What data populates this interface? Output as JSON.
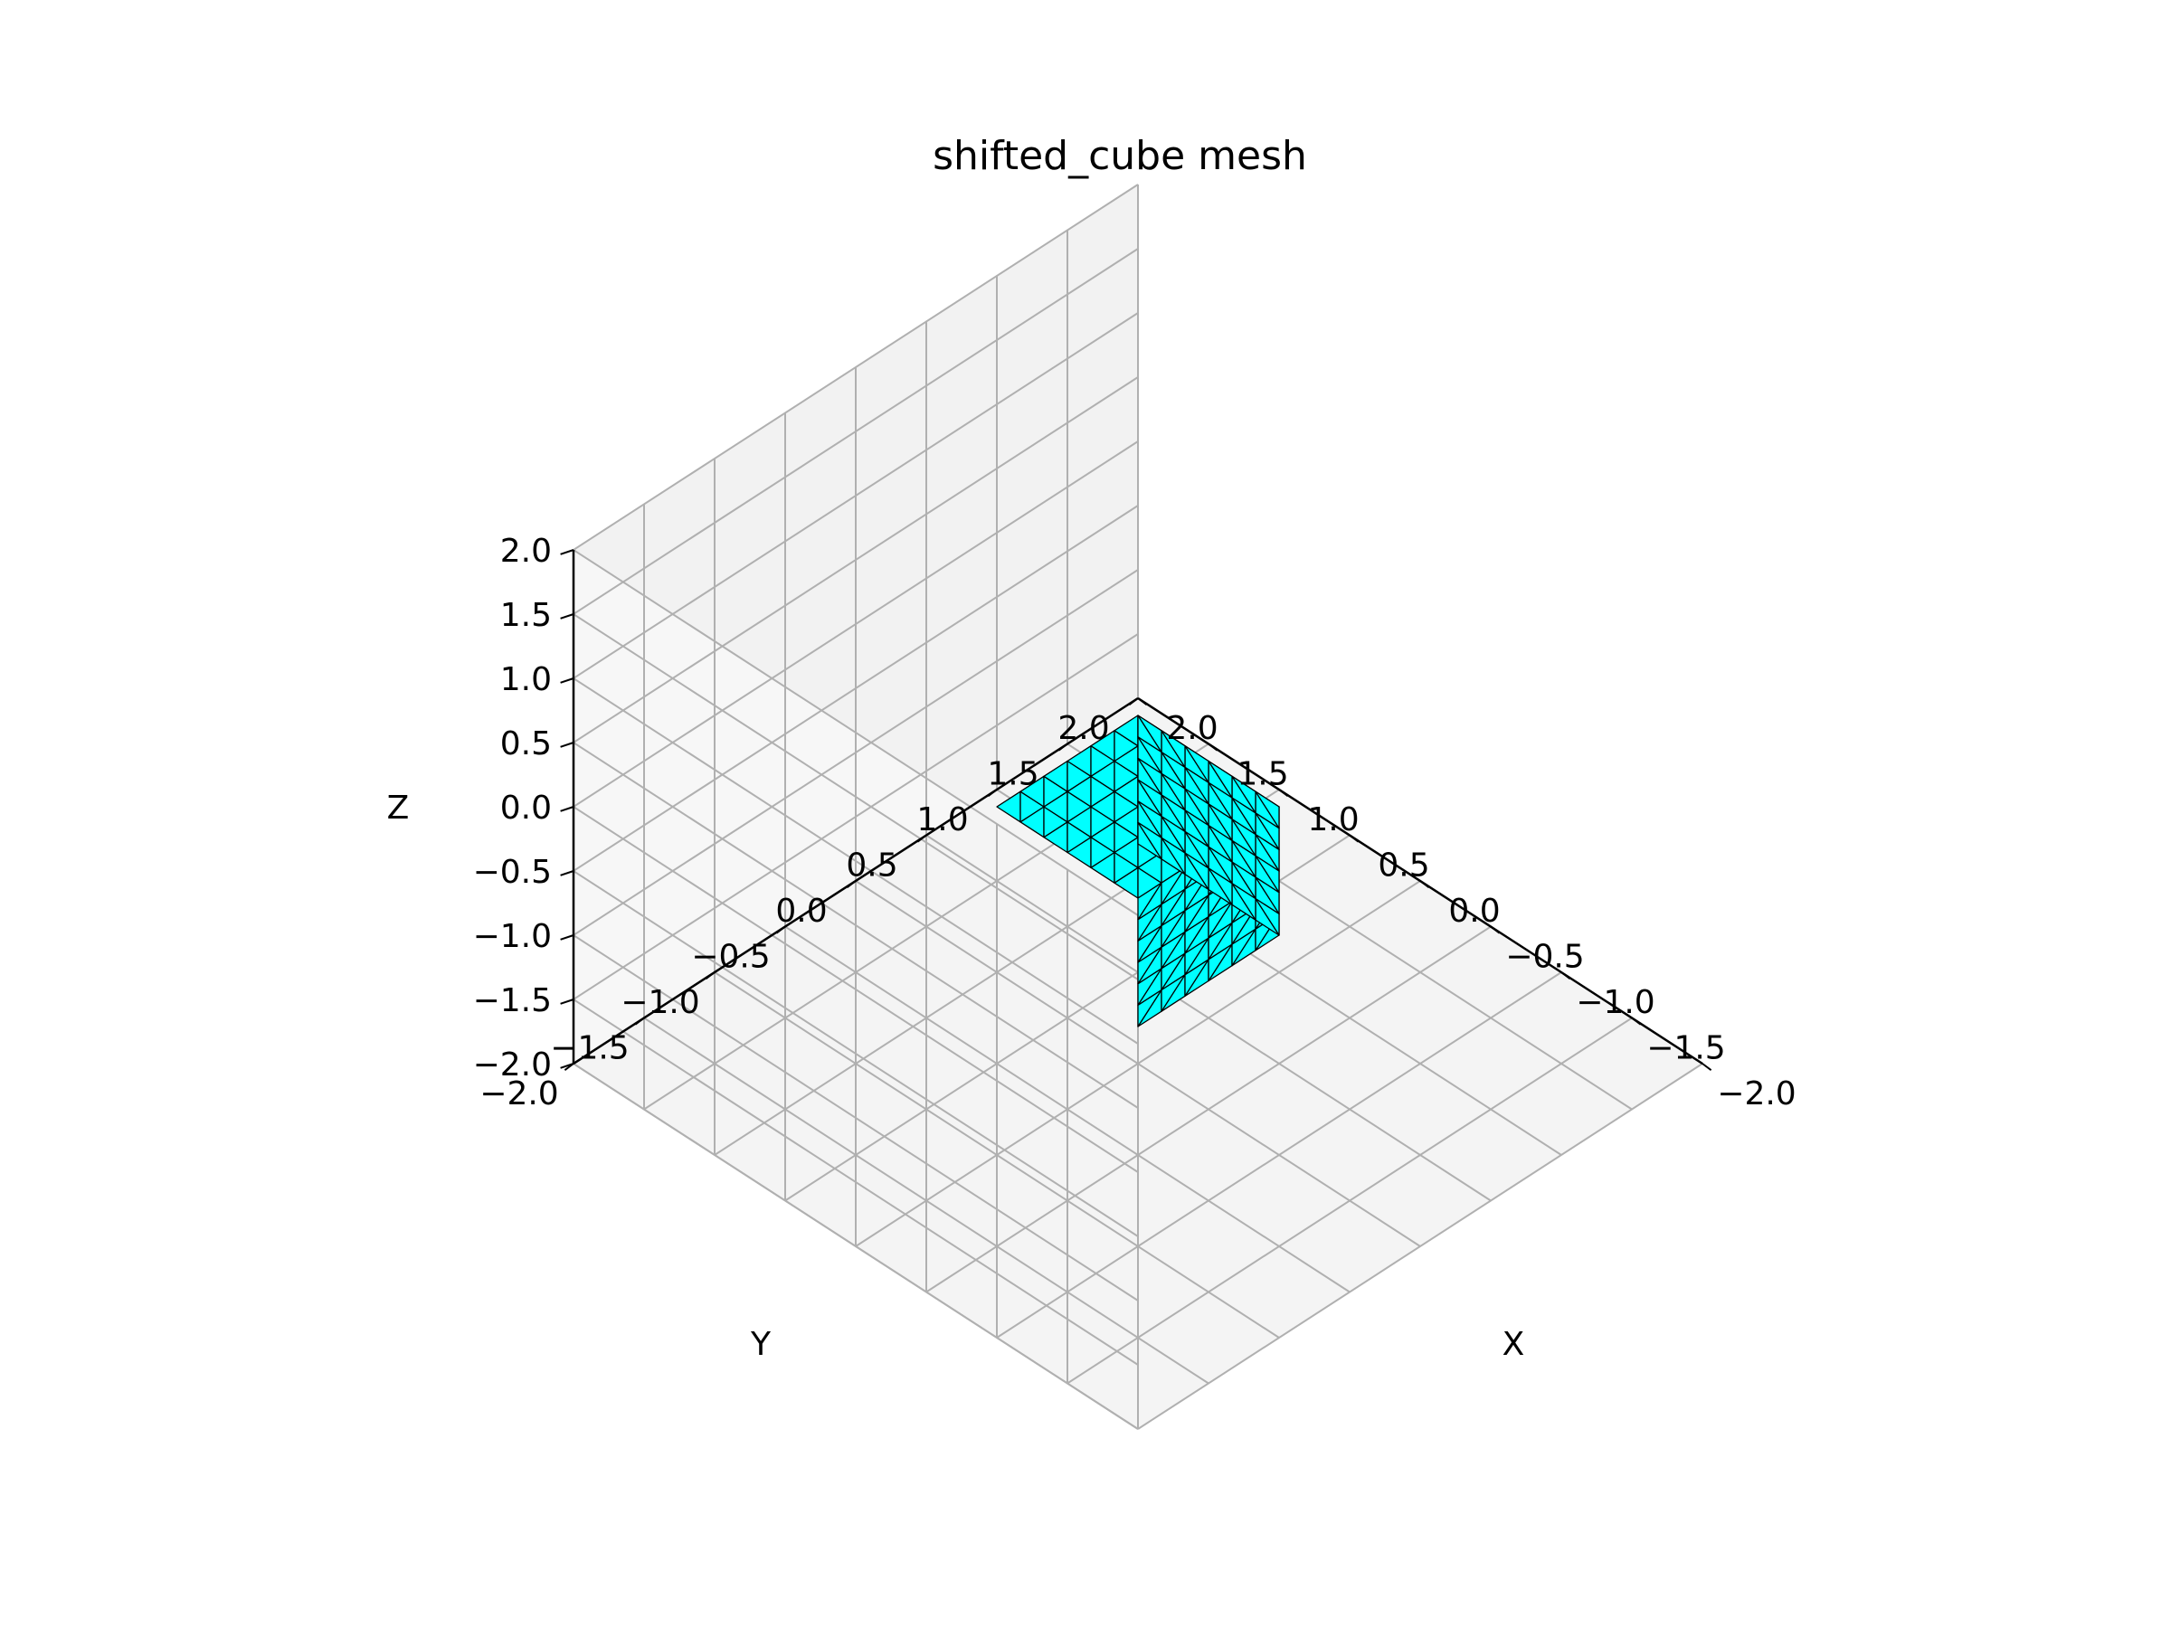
{
  "chart_data": {
    "type": "mesh3d",
    "title": "shifted_cube mesh",
    "xlabel": "X",
    "ylabel": "Y",
    "zlabel": "Z",
    "xlim": [
      -2.0,
      2.0
    ],
    "ylim": [
      -2.0,
      2.0
    ],
    "zlim": [
      -2.0,
      2.0
    ],
    "xticks": [
      "−2.0",
      "−1.5",
      "−1.0",
      "−0.5",
      "0.0",
      "0.5",
      "1.0",
      "1.5",
      "2.0"
    ],
    "yticks": [
      "−2.0",
      "−1.5",
      "−1.0",
      "−0.5",
      "0.0",
      "0.5",
      "1.0",
      "1.5",
      "2.0"
    ],
    "zticks": [
      "−2.0",
      "−1.5",
      "−1.0",
      "−0.5",
      "0.0",
      "0.5",
      "1.0",
      "1.5",
      "2.0"
    ],
    "grid": true,
    "view": {
      "elev": 30,
      "azim": 45
    },
    "mesh": {
      "name": "shifted_cube",
      "x_range": [
        -0.5,
        0.5
      ],
      "y_range": [
        -0.5,
        0.5
      ],
      "z_range": [
        -1.0,
        0.0
      ],
      "subdivisions": 6,
      "face_color": "#00ffff",
      "edge_color": "#000000"
    },
    "pane_colors": {
      "left": "#f2f2f2",
      "right": "#f7f7f7",
      "floor": "#f4f4f4"
    },
    "grid_color": "#b0b0b0"
  }
}
